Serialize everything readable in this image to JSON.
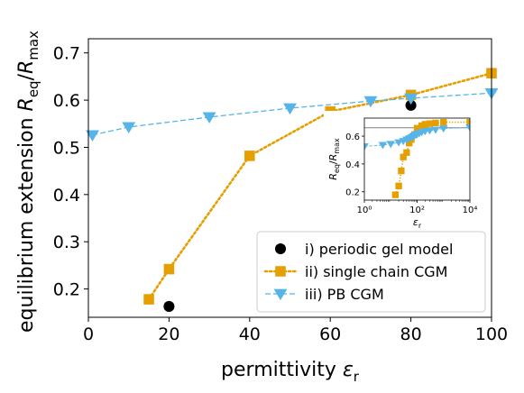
{
  "chart_data": [
    {
      "type": "line",
      "xlabel": "permittivity ε_r",
      "ylabel": "equilibrium extension R_eq/R_max",
      "xlim": [
        0,
        100
      ],
      "ylim": [
        0.14,
        0.73
      ],
      "xticks": [
        0,
        20,
        40,
        60,
        80,
        100
      ],
      "yticks": [
        0.2,
        0.3,
        0.4,
        0.5,
        0.6,
        0.7
      ],
      "xtick_labels": [
        "0",
        "20",
        "40",
        "60",
        "80",
        "100"
      ],
      "ytick_labels": [
        "0.2",
        "0.3",
        "0.4",
        "0.5",
        "0.6",
        "0.7"
      ],
      "legend_position": "lower-right",
      "series": [
        {
          "name": "i) periodic gel model",
          "style": "markers",
          "marker": "circle",
          "color": "#000000",
          "x": [
            20,
            80
          ],
          "y": [
            0.163,
            0.589
          ]
        },
        {
          "name": "ii) single chain CGM",
          "style": "dotted",
          "marker": "square",
          "color": "#e69f00",
          "x": [
            15,
            20,
            40,
            60,
            80,
            100
          ],
          "y": [
            0.178,
            0.242,
            0.482,
            0.576,
            0.611,
            0.657
          ]
        },
        {
          "name": "iii) PB CGM",
          "style": "dashed",
          "marker": "triangle-down",
          "color": "#56b4e9",
          "x": [
            1,
            10,
            30,
            50,
            70,
            80,
            100
          ],
          "y": [
            0.526,
            0.543,
            0.564,
            0.583,
            0.598,
            0.604,
            0.615
          ]
        }
      ]
    },
    {
      "type": "line",
      "role": "inset",
      "xscale": "log",
      "xlabel": "ε_r",
      "ylabel": "R_eq/R_max",
      "xlim": [
        1,
        10000
      ],
      "ylim": [
        0.14,
        0.73
      ],
      "xticks": [
        1,
        100,
        10000
      ],
      "yticks": [
        0.2,
        0.4,
        0.6
      ],
      "xtick_labels": [
        "10⁰",
        "10²",
        "10⁴"
      ],
      "ytick_labels": [
        "0.2",
        "0.4",
        "0.6"
      ],
      "hline": 0.66,
      "series": [
        {
          "marker": "square",
          "style": "dotted",
          "color": "#e69f00",
          "x": [
            15,
            20,
            25,
            30,
            40,
            50,
            60,
            80,
            100,
            150,
            200,
            300,
            500,
            1000,
            10000
          ],
          "y": [
            0.178,
            0.242,
            0.35,
            0.45,
            0.482,
            0.55,
            0.576,
            0.611,
            0.657,
            0.675,
            0.685,
            0.69,
            0.695,
            0.7,
            0.7
          ]
        },
        {
          "marker": "triangle-down",
          "style": "dashed",
          "color": "#56b4e9",
          "x": [
            1,
            5,
            10,
            20,
            30,
            40,
            50,
            60,
            70,
            80,
            90,
            100,
            120,
            150,
            200,
            300,
            500,
            1000,
            10000
          ],
          "y": [
            0.526,
            0.536,
            0.543,
            0.555,
            0.564,
            0.575,
            0.583,
            0.59,
            0.598,
            0.604,
            0.61,
            0.615,
            0.62,
            0.628,
            0.635,
            0.64,
            0.645,
            0.655,
            0.662
          ]
        }
      ]
    }
  ]
}
